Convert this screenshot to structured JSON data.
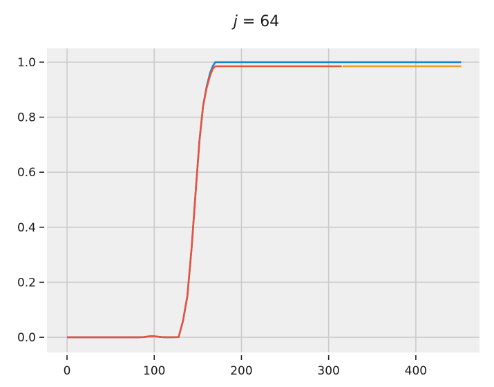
{
  "chart_data": {
    "type": "line",
    "title": "j = 64",
    "title_italic_part": "j",
    "title_rest": " = 64",
    "xlabel": "",
    "ylabel": "",
    "xlim": [
      -23,
      473
    ],
    "ylim": [
      -0.055,
      1.05
    ],
    "xticks": [
      0,
      100,
      200,
      300,
      400
    ],
    "yticks": [
      0.0,
      0.2,
      0.4,
      0.6,
      0.8,
      1.0
    ],
    "xtick_labels": [
      "0",
      "100",
      "200",
      "300",
      "400"
    ],
    "ytick_labels": [
      "0.0",
      "0.2",
      "0.4",
      "0.6",
      "0.8",
      "1.0"
    ],
    "grid": true,
    "background": "#efefef",
    "grid_color": "#cbcbcb",
    "series": [
      {
        "color": "#e4a11b",
        "x": [
          316,
          452
        ],
        "y": [
          0.985,
          0.985
        ]
      },
      {
        "color": "#1c86c8",
        "x": [
          0,
          40,
          80,
          88,
          95,
          100,
          108,
          115,
          128,
          133,
          138,
          143,
          148,
          152,
          156,
          160,
          164,
          167,
          170,
          175,
          200,
          250,
          300,
          350,
          400,
          452
        ],
        "y": [
          0.0,
          0.0,
          0.0,
          0.001,
          0.004,
          0.004,
          0.001,
          0.0,
          0.001,
          0.06,
          0.15,
          0.33,
          0.55,
          0.72,
          0.84,
          0.91,
          0.96,
          0.985,
          1.0,
          1.0,
          1.0,
          1.0,
          1.0,
          1.0,
          1.0,
          1.0
        ]
      },
      {
        "color": "#e8533f",
        "x": [
          0,
          40,
          80,
          88,
          95,
          100,
          108,
          115,
          128,
          133,
          138,
          143,
          148,
          152,
          156,
          160,
          164,
          167,
          170,
          175,
          200,
          250,
          300,
          315
        ],
        "y": [
          0.0,
          0.0,
          0.0,
          0.001,
          0.004,
          0.004,
          0.001,
          0.0,
          0.001,
          0.06,
          0.15,
          0.33,
          0.55,
          0.72,
          0.84,
          0.905,
          0.95,
          0.975,
          0.985,
          0.985,
          0.985,
          0.985,
          0.985,
          0.985
        ]
      }
    ]
  }
}
